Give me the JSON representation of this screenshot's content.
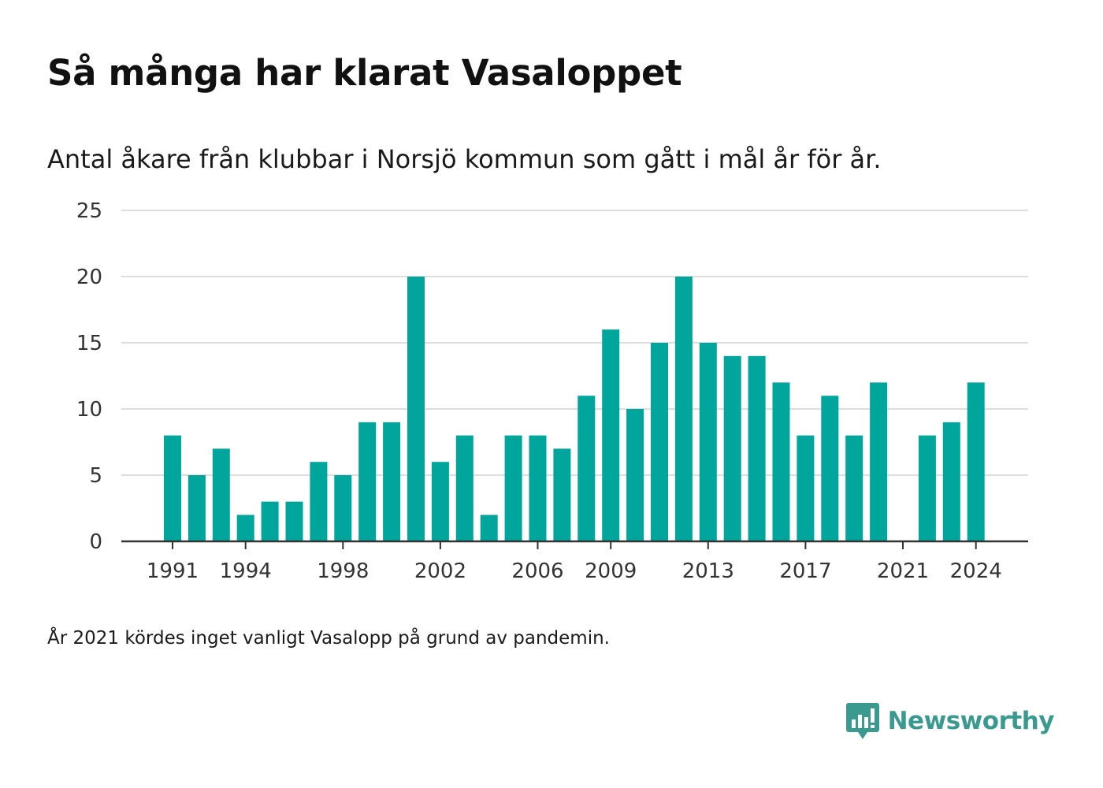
{
  "title": "Så många har klarat Vasaloppet",
  "subtitle": "Antal åkare från klubbar i Norsjö kommun som gått i mål år för år.",
  "footnote": "År 2021 kördes inget vanligt Vasalopp på grund av pandemin.",
  "brand": {
    "name": "Newsworthy",
    "color": "#3b9a8f",
    "icon": "newsworthy-logo-icon"
  },
  "colors": {
    "bar": "#00a69c",
    "grid": "#dddddd",
    "axis": "#333333",
    "text": "#333333"
  },
  "chart_data": {
    "type": "bar",
    "title": "Så många har klarat Vasaloppet",
    "subtitle": "Antal åkare från klubbar i Norsjö kommun som gått i mål år för år.",
    "xlabel": "",
    "ylabel": "",
    "categories": [
      1991,
      1992,
      1993,
      1994,
      1995,
      1996,
      1997,
      1998,
      1999,
      2000,
      2001,
      2002,
      2003,
      2004,
      2005,
      2006,
      2007,
      2008,
      2009,
      2010,
      2011,
      2012,
      2013,
      2014,
      2015,
      2016,
      2017,
      2018,
      2019,
      2020,
      2021,
      2022,
      2023,
      2024
    ],
    "values": [
      8,
      5,
      7,
      2,
      3,
      3,
      6,
      5,
      9,
      9,
      20,
      6,
      8,
      2,
      8,
      8,
      7,
      11,
      16,
      10,
      15,
      20,
      15,
      14,
      14,
      12,
      8,
      11,
      8,
      12,
      0,
      8,
      9,
      12
    ],
    "x_ticks": [
      1991,
      1994,
      1998,
      2002,
      2006,
      2009,
      2013,
      2017,
      2021,
      2024
    ],
    "y_ticks": [
      0,
      5,
      10,
      15,
      20,
      25
    ],
    "ylim": [
      0,
      25
    ],
    "grid": true,
    "legend": "none"
  }
}
